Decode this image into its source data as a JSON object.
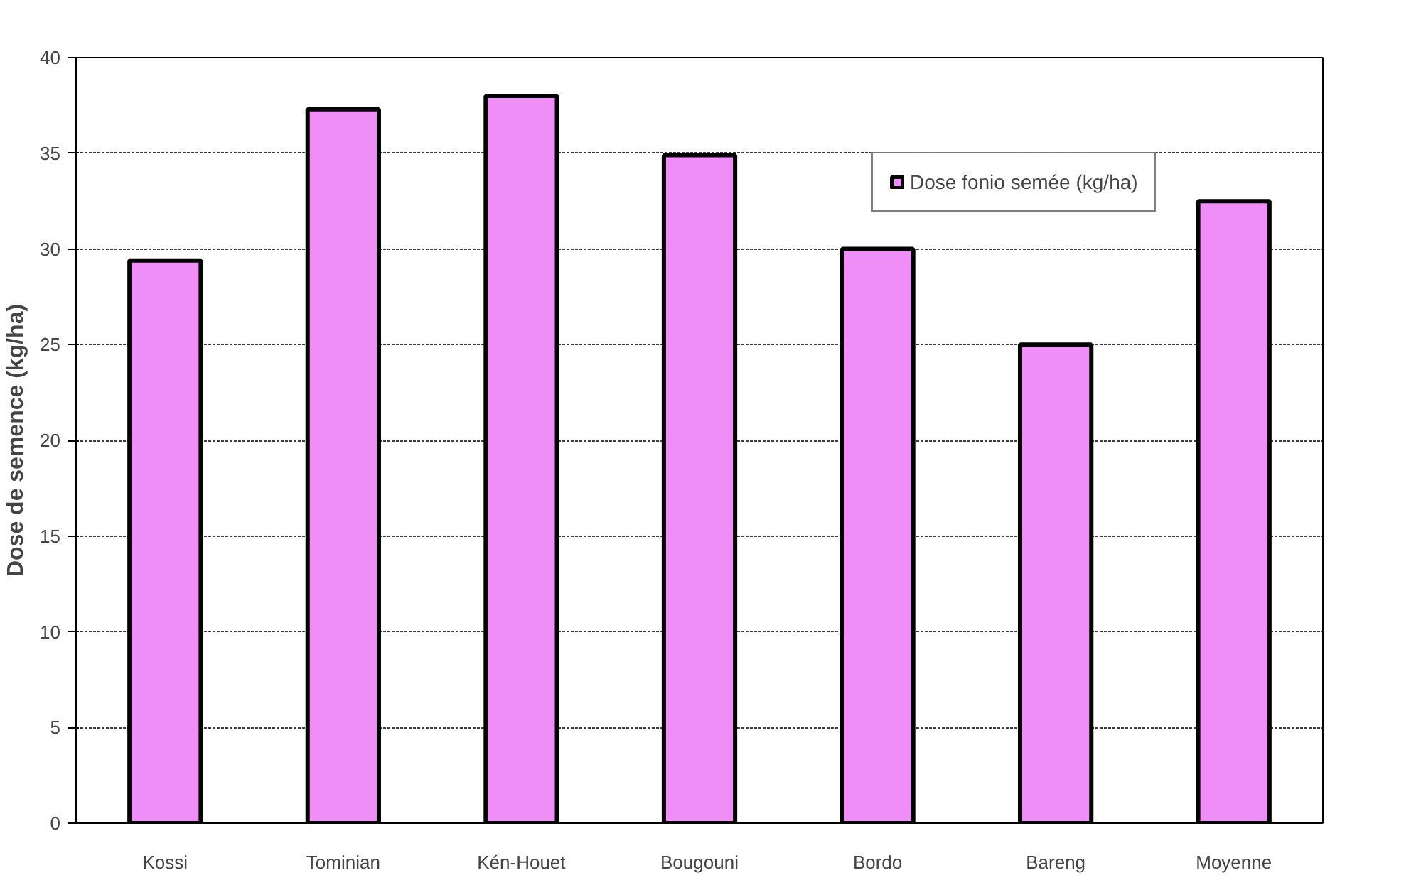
{
  "chart_data": {
    "type": "bar",
    "ylabel": "Dose de semence (kg/ha)",
    "categories": [
      "Kossi",
      "Tominian",
      "Kén-Houet",
      "Bougouni",
      "Bordo",
      "Bareng",
      "Moyenne"
    ],
    "series": [
      {
        "name": "Dose fonio semée (kg/ha)",
        "color": "#f08ef8",
        "values": [
          29.4,
          37.3,
          38.0,
          34.9,
          30.0,
          25.0,
          32.5
        ]
      }
    ],
    "ylim": [
      0,
      40
    ],
    "yticks": [
      0,
      5,
      10,
      15,
      20,
      25,
      30,
      35,
      40
    ],
    "grid": "y",
    "legend": "top right"
  }
}
